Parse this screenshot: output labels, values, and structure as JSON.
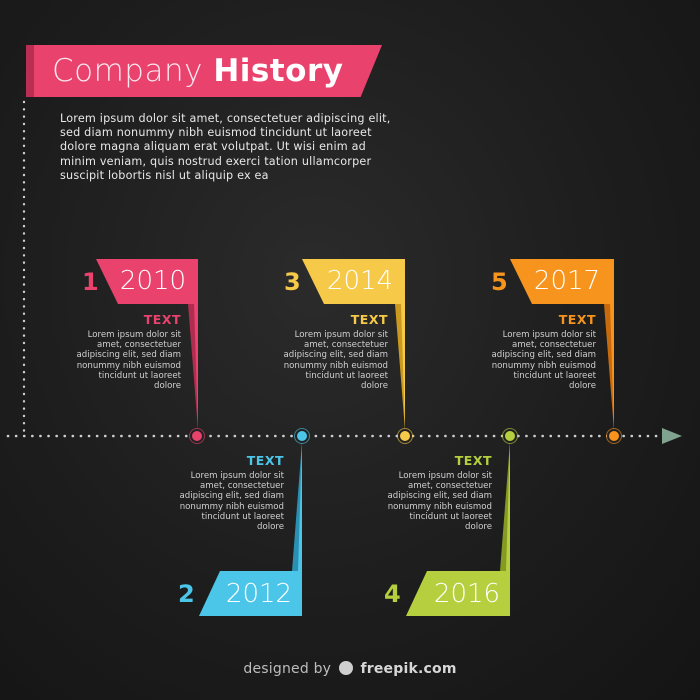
{
  "header": {
    "title_light": "Company",
    "title_bold": "History",
    "intro": "Lorem ipsum dolor sit amet, consectetuer adipiscing elit, sed diam nonummy nibh euismod tincidunt ut laoreet dolore magna aliquam erat volutpat. Ut wisi enim ad minim veniam, quis nostrud exerci tation ullamcorper suscipit lobortis nisl ut aliquip ex ea"
  },
  "milestones": [
    {
      "number": "1",
      "year": "2010",
      "title": "TEXT",
      "desc": "Lorem ipsum dolor sit amet, consectetuer adipiscing elit, sed diam nonummy nibh euismod tincidunt ut laoreet dolore",
      "color": "#e8426d",
      "shade": "#b02c50"
    },
    {
      "number": "2",
      "year": "2012",
      "title": "TEXT",
      "desc": "Lorem ipsum dolor sit amet, consectetuer adipiscing elit, sed diam nonummy nibh euismod tincidunt ut laoreet dolore",
      "color": "#4cc6e8",
      "shade": "#2a8fb0"
    },
    {
      "number": "3",
      "year": "2014",
      "title": "TEXT",
      "desc": "Lorem ipsum dolor sit amet, consectetuer adipiscing elit, sed diam nonummy nibh euismod tincidunt ut laoreet dolore",
      "color": "#f7c948",
      "shade": "#c99a1e"
    },
    {
      "number": "4",
      "year": "2016",
      "title": "TEXT",
      "desc": "Lorem ipsum dolor sit amet, consectetuer adipiscing elit, sed diam nonummy nibh euismod tincidunt ut laoreet dolore",
      "color": "#b6cf3e",
      "shade": "#849a22"
    },
    {
      "number": "5",
      "year": "2017",
      "title": "TEXT",
      "desc": "Lorem ipsum dolor sit amet, consectetuer adipiscing elit, sed diam nonummy nibh euismod tincidunt ut laoreet dolore",
      "color": "#f7941d",
      "shade": "#c76a0e"
    }
  ],
  "footer": {
    "prefix": "designed by",
    "brand": "freepik.com"
  },
  "colors": {
    "dots": "#cfcfcf",
    "arrow": "#7fa38f"
  }
}
